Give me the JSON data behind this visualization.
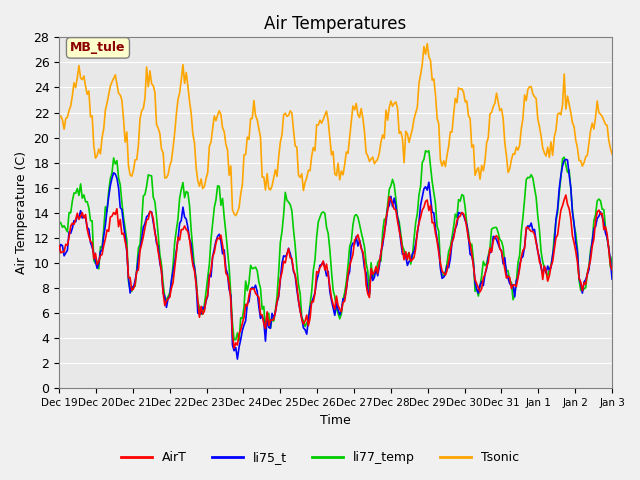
{
  "title": "Air Temperatures",
  "xlabel": "Time",
  "ylabel": "Air Temperature (C)",
  "ylim": [
    0,
    28
  ],
  "yticks": [
    0,
    2,
    4,
    6,
    8,
    10,
    12,
    14,
    16,
    18,
    20,
    22,
    24,
    26,
    28
  ],
  "annotation": "MB_tule",
  "annotation_color": "#8B0000",
  "annotation_bg": "#FFFFCC",
  "bg_color": "#E8E8E8",
  "plot_bg": "#E8E8E8",
  "legend_entries": [
    "AirT",
    "li75_t",
    "li77_temp",
    "Tsonic"
  ],
  "legend_colors": [
    "#FF0000",
    "#0000FF",
    "#00CC00",
    "#FFA500"
  ],
  "line_width": 1.2,
  "xtick_labels": [
    "Dec 19",
    "Dec 20",
    "Dec 21",
    "Dec 22",
    "Dec 23",
    "Dec 24",
    "Dec 25",
    "Dec 26",
    "Dec 27",
    "Dec 28",
    "Dec 29",
    "Dec 30",
    "Dec 31",
    "Jan 1",
    "Jan 2",
    "Jan 3"
  ],
  "num_points": 336,
  "seed": 42
}
